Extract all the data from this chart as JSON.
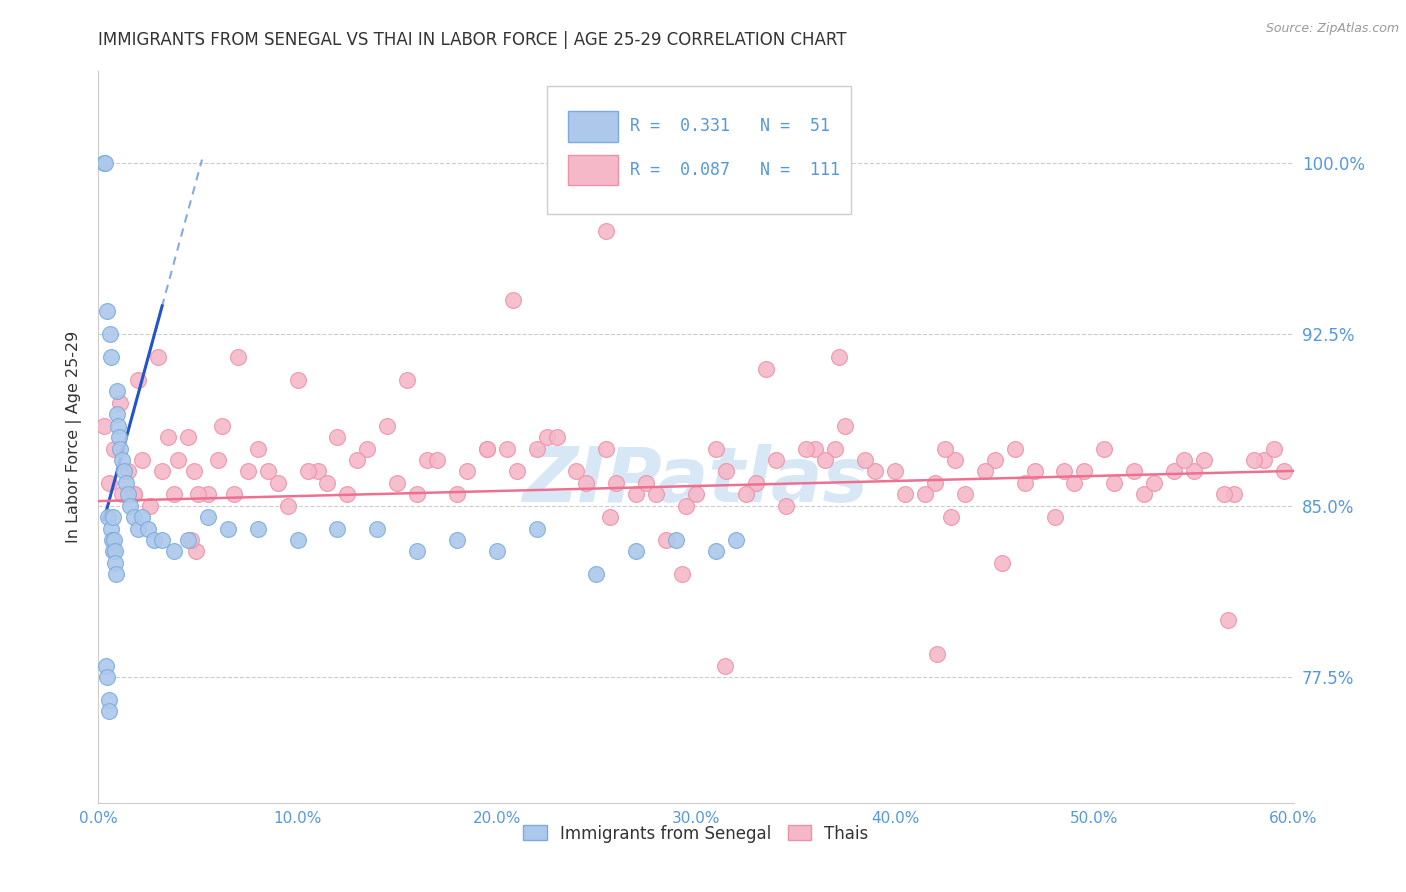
{
  "title": "IMMIGRANTS FROM SENEGAL VS THAI IN LABOR FORCE | AGE 25-29 CORRELATION CHART",
  "source": "Source: ZipAtlas.com",
  "ylabel": "In Labor Force | Age 25-29",
  "xlim": [
    0.0,
    60.0
  ],
  "ylim": [
    72.0,
    104.0
  ],
  "y_ticks": [
    77.5,
    85.0,
    92.5,
    100.0
  ],
  "y_tick_labels": [
    "77.5%",
    "85.0%",
    "92.5%",
    "100.0%"
  ],
  "x_ticks": [
    0,
    10,
    20,
    30,
    40,
    50,
    60
  ],
  "x_tick_labels": [
    "0.0%",
    "10.0%",
    "20.0%",
    "30.0%",
    "40.0%",
    "50.0%",
    "60.0%"
  ],
  "legend_blue_text": "R =  0.331   N =  51",
  "legend_pink_text": "R =  0.087   N =  111",
  "legend_blue_label": "Immigrants from Senegal",
  "legend_pink_label": "Thais",
  "scatter_blue_fill": "#adc8eb",
  "scatter_blue_edge": "#7aabdd",
  "scatter_pink_fill": "#f4b8c8",
  "scatter_pink_edge": "#ee90a8",
  "trendline_blue_solid": "#2255cc",
  "trendline_blue_dashed": "#88aadd",
  "trendline_pink": "#ee7090",
  "watermark": "ZIPatlas",
  "watermark_color": "#b8d4ee",
  "grid_color": "#cccccc",
  "title_color": "#333333",
  "right_tick_color": "#5599dd",
  "bottom_tick_color": "#5599dd",
  "legend_box_edge": "#cccccc",
  "source_color": "#999999",
  "blue_x": [
    0.28,
    0.32,
    0.38,
    0.42,
    0.45,
    0.5,
    0.52,
    0.55,
    0.58,
    0.62,
    0.65,
    0.68,
    0.72,
    0.75,
    0.8,
    0.82,
    0.85,
    0.88,
    0.92,
    0.95,
    1.0,
    1.05,
    1.1,
    1.2,
    1.3,
    1.4,
    1.5,
    1.6,
    1.8,
    2.0,
    2.2,
    2.5,
    2.8,
    3.2,
    3.8,
    4.5,
    5.5,
    6.5,
    8.0,
    10.0,
    12.0,
    14.0,
    16.0,
    18.0,
    20.0,
    22.0,
    25.0,
    27.0,
    29.0,
    31.0,
    32.0
  ],
  "blue_y": [
    100.0,
    100.0,
    78.0,
    77.5,
    93.5,
    84.5,
    76.5,
    76.0,
    92.5,
    91.5,
    84.0,
    83.5,
    83.0,
    84.5,
    83.5,
    83.0,
    82.5,
    82.0,
    90.0,
    89.0,
    88.5,
    88.0,
    87.5,
    87.0,
    86.5,
    86.0,
    85.5,
    85.0,
    84.5,
    84.0,
    84.5,
    84.0,
    83.5,
    83.5,
    83.0,
    83.5,
    84.5,
    84.0,
    84.0,
    83.5,
    84.0,
    84.0,
    83.0,
    83.5,
    83.0,
    84.0,
    82.0,
    83.0,
    83.5,
    83.0,
    83.5
  ],
  "pink_x": [
    0.3,
    0.55,
    0.8,
    1.1,
    1.5,
    1.8,
    2.2,
    2.6,
    3.0,
    3.5,
    4.0,
    4.8,
    5.5,
    6.2,
    7.0,
    8.0,
    9.0,
    10.0,
    11.0,
    12.0,
    13.5,
    15.0,
    16.5,
    18.0,
    19.5,
    21.0,
    22.5,
    24.0,
    25.5,
    27.0,
    28.5,
    30.0,
    31.5,
    33.0,
    34.5,
    36.0,
    37.5,
    39.0,
    40.5,
    42.0,
    43.5,
    45.0,
    46.5,
    48.0,
    49.5,
    51.0,
    52.5,
    54.0,
    55.5,
    57.0,
    58.5,
    59.5,
    3.2,
    6.8,
    11.5,
    17.0,
    23.0,
    29.5,
    35.5,
    41.5,
    47.0,
    53.0,
    59.0,
    1.2,
    4.5,
    9.5,
    14.5,
    19.5,
    26.0,
    32.5,
    38.5,
    44.5,
    50.5,
    56.5,
    2.0,
    5.0,
    8.5,
    13.0,
    20.5,
    27.5,
    34.0,
    40.0,
    46.0,
    52.0,
    58.0,
    3.8,
    7.5,
    12.5,
    18.5,
    24.5,
    31.0,
    37.0,
    43.0,
    49.0,
    55.0,
    1.8,
    6.0,
    10.5,
    16.0,
    22.0,
    28.0,
    36.5,
    42.5,
    48.5,
    54.5,
    25.5,
    33.5,
    20.8,
    37.2,
    15.5,
    42.8
  ],
  "pink_y": [
    88.5,
    86.0,
    87.5,
    89.5,
    86.5,
    85.5,
    87.0,
    85.0,
    91.5,
    88.0,
    87.0,
    86.5,
    85.5,
    88.5,
    91.5,
    87.5,
    86.0,
    90.5,
    86.5,
    88.0,
    87.5,
    86.0,
    87.0,
    85.5,
    87.5,
    86.5,
    88.0,
    86.5,
    87.5,
    85.5,
    83.5,
    85.5,
    86.5,
    86.0,
    85.0,
    87.5,
    88.5,
    86.5,
    85.5,
    86.0,
    85.5,
    87.0,
    86.0,
    84.5,
    86.5,
    86.0,
    85.5,
    86.5,
    87.0,
    85.5,
    87.0,
    86.5,
    86.5,
    85.5,
    86.0,
    87.0,
    88.0,
    85.0,
    87.5,
    85.5,
    86.5,
    86.0,
    87.5,
    85.5,
    88.0,
    85.0,
    88.5,
    87.5,
    86.0,
    85.5,
    87.0,
    86.5,
    87.5,
    85.5,
    90.5,
    85.5,
    86.5,
    87.0,
    87.5,
    86.0,
    87.0,
    86.5,
    87.5,
    86.5,
    87.0,
    85.5,
    86.5,
    85.5,
    86.5,
    86.0,
    87.5,
    87.5,
    87.0,
    86.0,
    86.5,
    85.5,
    87.0,
    86.5,
    85.5,
    87.5,
    85.5,
    87.0,
    87.5,
    86.5,
    87.0,
    97.0,
    91.0,
    94.0,
    91.5,
    90.5,
    84.5
  ]
}
